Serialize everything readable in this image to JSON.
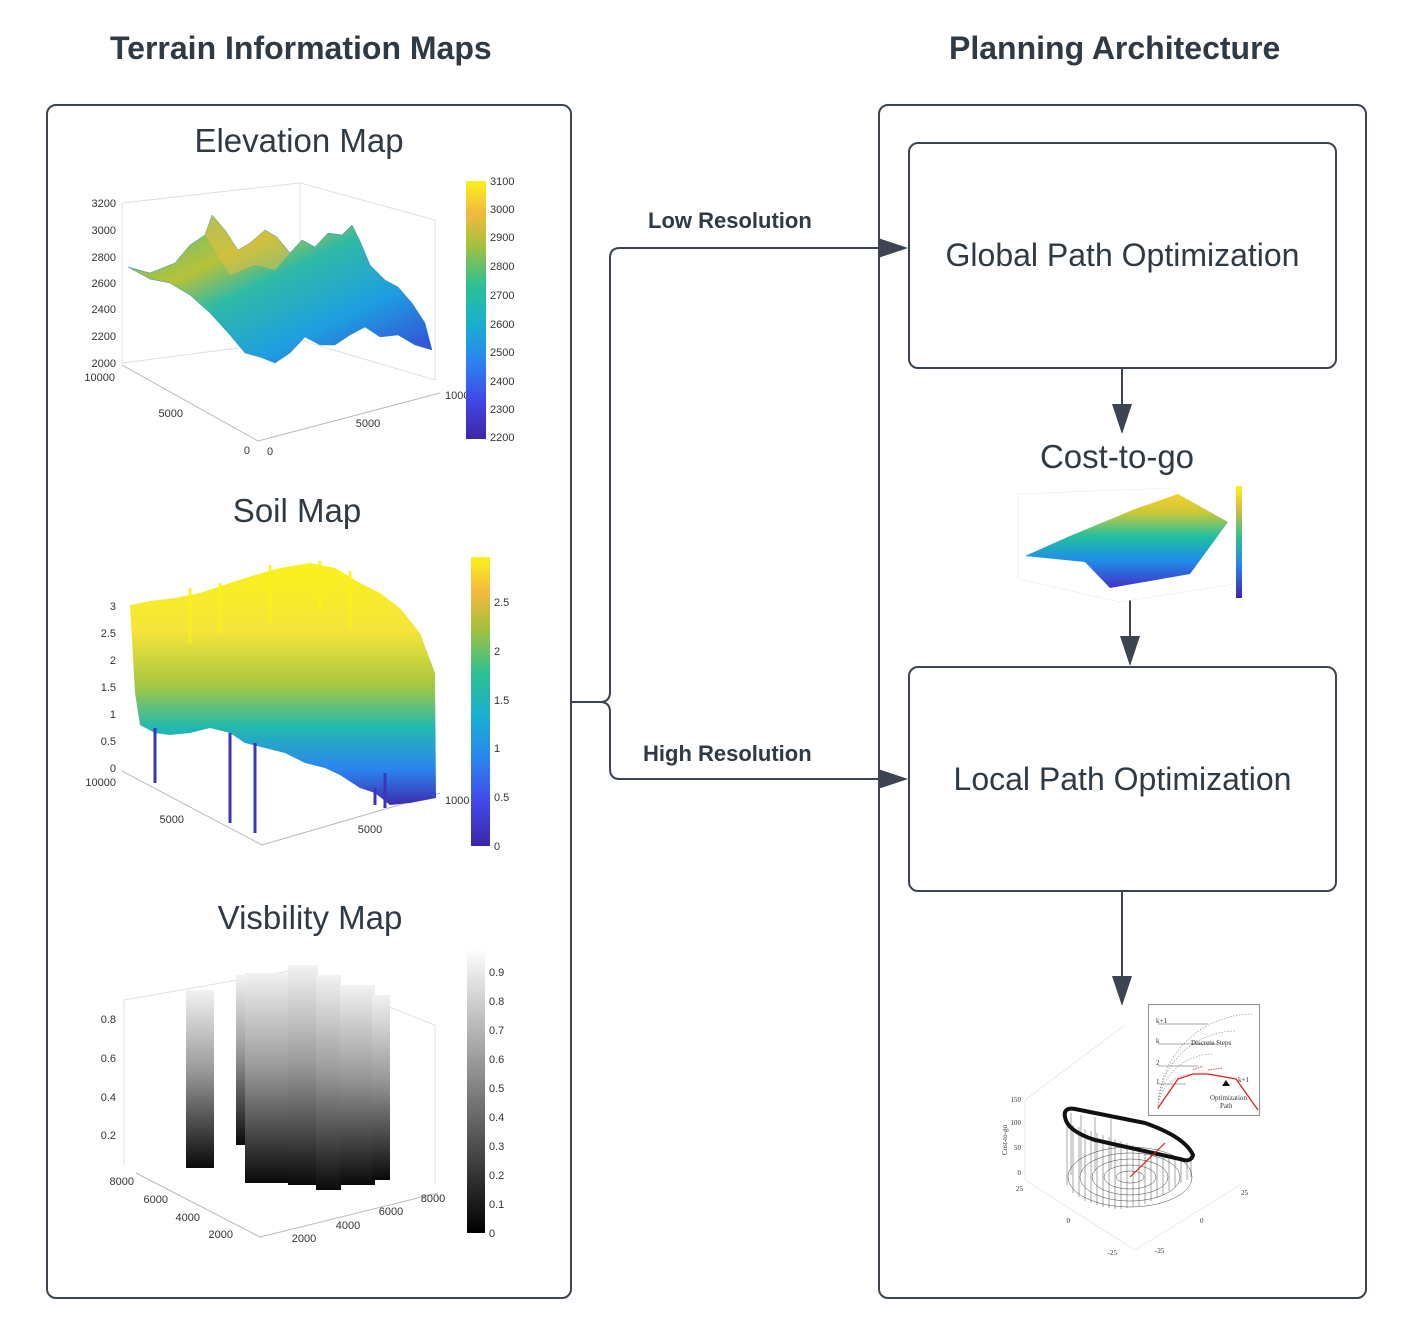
{
  "left_section": {
    "title": "Terrain Information Maps",
    "maps": [
      {
        "title": "Elevation Map",
        "z_ticks": [
          "3200",
          "3000",
          "2800",
          "2600",
          "2400",
          "2200",
          "2000"
        ],
        "y_ticks": [
          "10000",
          "5000",
          "0"
        ],
        "x_ticks": [
          "0",
          "5000",
          "1000"
        ],
        "colorbar_ticks": [
          "3100",
          "3000",
          "2900",
          "2800",
          "2700",
          "2600",
          "2500",
          "2400",
          "2300",
          "2200"
        ],
        "colormap": "parula"
      },
      {
        "title": "Soil Map",
        "z_ticks": [
          "3",
          "2.5",
          "2",
          "1.5",
          "1",
          "0.5",
          "0"
        ],
        "y_ticks": [
          "10000",
          "5000"
        ],
        "x_ticks": [
          "5000",
          "1000"
        ],
        "colorbar_ticks": [
          "2.5",
          "2",
          "1.5",
          "1",
          "0.5",
          "0"
        ],
        "colormap": "parula"
      },
      {
        "title": "Visbility Map",
        "z_ticks": [
          "0.8",
          "0.6",
          "0.4",
          "0.2"
        ],
        "y_ticks": [
          "8000",
          "6000",
          "4000",
          "2000"
        ],
        "x_ticks": [
          "2000",
          "4000",
          "6000",
          "8000"
        ],
        "colorbar_ticks": [
          "0.9",
          "0.8",
          "0.7",
          "0.6",
          "0.5",
          "0.4",
          "0.3",
          "0.2",
          "0.1",
          "0"
        ],
        "colormap": "gray"
      }
    ]
  },
  "connectors": {
    "low_label": "Low Resolution",
    "high_label": "High Resolution"
  },
  "right_section": {
    "title": "Planning Architecture",
    "global_box": "Global Path Optimization",
    "cost_title": "Cost-to-go",
    "local_box": "Local Path Optimization",
    "bowl_plot": {
      "z_label": "Cost-to-go",
      "z_ticks": [
        "150",
        "100",
        "50",
        "0"
      ],
      "axis_ticks": [
        "25",
        "0",
        "-25",
        "25",
        "0",
        "-25"
      ]
    },
    "inset": {
      "step_labels": [
        "k+1",
        "k",
        "2",
        "1"
      ],
      "discrete_label": "Discrete Steps",
      "k1_label": "k+1",
      "opt_label_1": "Optimization",
      "opt_label_2": "Path"
    }
  },
  "colors": {
    "border": "#3b4450",
    "text": "#2f3a45",
    "path_red": "#e02020"
  }
}
